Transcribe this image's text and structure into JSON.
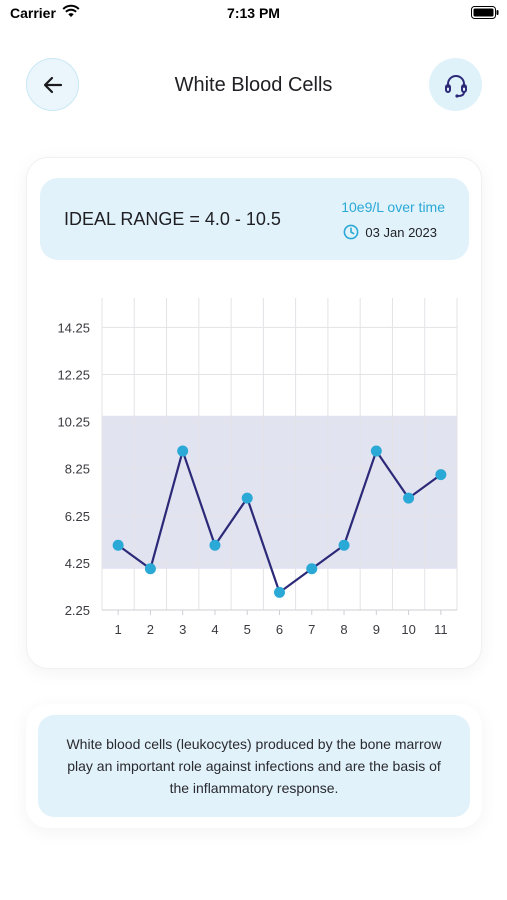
{
  "status_bar": {
    "carrier": "Carrier",
    "time": "7:13 PM"
  },
  "header": {
    "title": "White Blood Cells",
    "back_icon": "arrow-left-icon",
    "support_icon": "headset-icon"
  },
  "range_panel": {
    "ideal_range": "IDEAL RANGE = 4.0 - 10.5",
    "unit": "10e9/L over time",
    "date": "03 Jan 2023"
  },
  "colors": {
    "accent": "#2ba9d6",
    "line": "#2c2a78",
    "band": "#e2e3f1",
    "panel": "#e1f2fa"
  },
  "chart_data": {
    "type": "line",
    "x": [
      1,
      2,
      3,
      4,
      5,
      6,
      7,
      8,
      9,
      10,
      11
    ],
    "values": [
      5,
      4,
      9,
      5,
      7,
      3,
      4,
      5,
      9,
      7,
      8
    ],
    "y_ticks": [
      "14.25",
      "12.25",
      "10.25",
      "8.25",
      "6.25",
      "4.25",
      "2.25"
    ],
    "x_ticks": [
      "1",
      "2",
      "3",
      "4",
      "5",
      "6",
      "7",
      "8",
      "9",
      "10",
      "11"
    ],
    "ylim": [
      2.25,
      15.5
    ],
    "xlim": [
      0.5,
      11.5
    ],
    "ideal_band": [
      4.0,
      10.5
    ],
    "grid": true
  },
  "info": {
    "description": "White blood cells (leukocytes) produced by the bone marrow play an important role against infections and are the basis of the inflammatory response."
  }
}
